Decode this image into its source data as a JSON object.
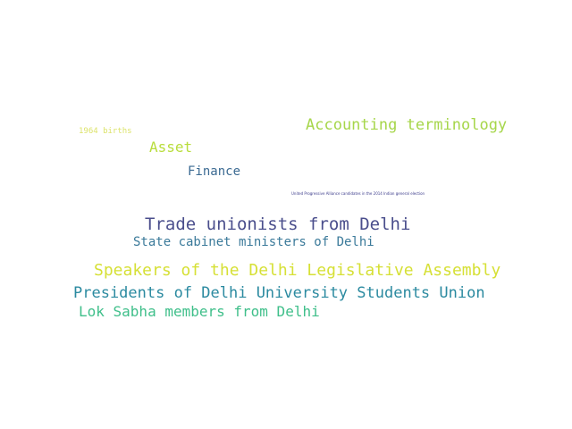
{
  "wordcloud": {
    "words": [
      {
        "id": "w-1964-births",
        "text": "1964 births"
      },
      {
        "id": "w-accounting",
        "text": "Accounting terminology"
      },
      {
        "id": "w-asset",
        "text": "Asset"
      },
      {
        "id": "w-finance",
        "text": "Finance"
      },
      {
        "id": "w-upa",
        "text": "United Progressive Alliance candidates in the 2014 Indian general election"
      },
      {
        "id": "w-trade",
        "text": "Trade unionists from Delhi"
      },
      {
        "id": "w-cabinet",
        "text": "State cabinet ministers of Delhi"
      },
      {
        "id": "w-speakers",
        "text": "Speakers of the Delhi Legislative Assembly"
      },
      {
        "id": "w-presidents",
        "text": "Presidents of Delhi University Students Union"
      },
      {
        "id": "w-loksabha",
        "text": "Lok Sabha members from Delhi"
      }
    ]
  }
}
